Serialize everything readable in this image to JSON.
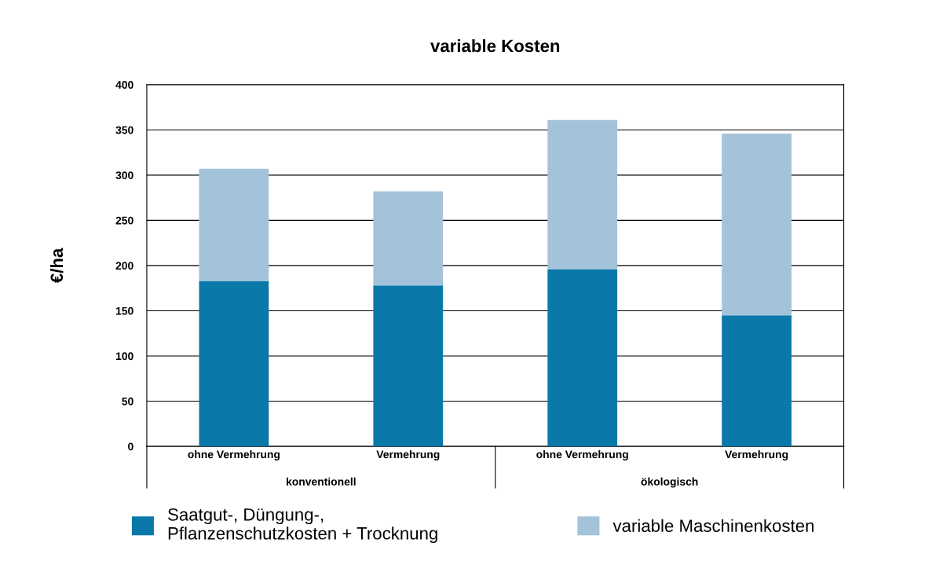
{
  "chart_data": {
    "type": "bar",
    "title": "variable Kosten",
    "ylabel": "€/ha",
    "categories": [
      "ohne Vermehrung",
      "Vermehrung",
      "ohne Vermehrung",
      "Vermehrung"
    ],
    "stacked": true,
    "series": [
      {
        "name": "Saatgut-, Düngung-,\nPflanzenschutzkosten + Trocknung",
        "color": "#0a78a9",
        "values": [
          183,
          178,
          196,
          145
        ]
      },
      {
        "name": "variable Maschinenkosten",
        "color": "#a3c3da",
        "values": [
          124,
          104,
          165,
          201
        ]
      }
    ],
    "annotations": [
      "konventionell",
      "ökologisch"
    ],
    "ylim": [
      0,
      400
    ],
    "yticks": [
      0,
      50,
      100,
      150,
      200,
      250,
      300,
      350,
      400
    ],
    "grid": "y",
    "legend": "bottom"
  }
}
